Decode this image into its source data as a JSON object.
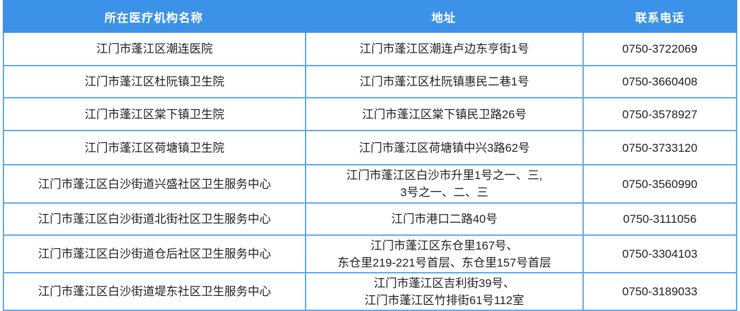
{
  "table": {
    "headers": {
      "institution": "所在医疗机构名称",
      "address": "地址",
      "phone": "联系电话"
    },
    "rows": [
      {
        "institution": "江门市蓬江区潮连医院",
        "address": "江门市蓬江区潮连卢边东亨街1号",
        "phone": "0750-3722069"
      },
      {
        "institution": "江门市蓬江区杜阮镇卫生院",
        "address": "江门市蓬江区杜阮镇惠民二巷1号",
        "phone": "0750-3660408"
      },
      {
        "institution": "江门市蓬江区棠下镇卫生院",
        "address": "江门市蓬江区棠下镇民卫路26号",
        "phone": "0750-3578927"
      },
      {
        "institution": "江门市蓬江区荷塘镇卫生院",
        "address": "江门市蓬江区荷塘镇中兴3路62号",
        "phone": "0750-3733120"
      },
      {
        "institution": "江门市蓬江区白沙街道兴盛社区卫生服务中心",
        "address": "江门市蓬江区白沙市升里1号之一、三,\n3号之一、二、三",
        "phone": "0750-3560990"
      },
      {
        "institution": "江门市蓬江区白沙街道北街社区卫生服务中心",
        "address": "江门市港口二路40号",
        "phone": "0750-3111056"
      },
      {
        "institution": "江门市蓬江区白沙街道仓后社区卫生服务中心",
        "address": "江门市蓬江区东仓里167号、\n东仓里219-221号首层、东仓里157号首层",
        "phone": "0750-3304103"
      },
      {
        "institution": "江门市蓬江区白沙街道堤东社区卫生服务中心",
        "address": "江门市蓬江区吉利街39号、\n江门市蓬江区竹排街61号112室",
        "phone": "0750-3189033"
      }
    ],
    "colors": {
      "header_bg": "#3c92e9",
      "header_text": "#ffffff",
      "border": "#5fa9ef",
      "body_text": "#1f1f1f"
    }
  }
}
